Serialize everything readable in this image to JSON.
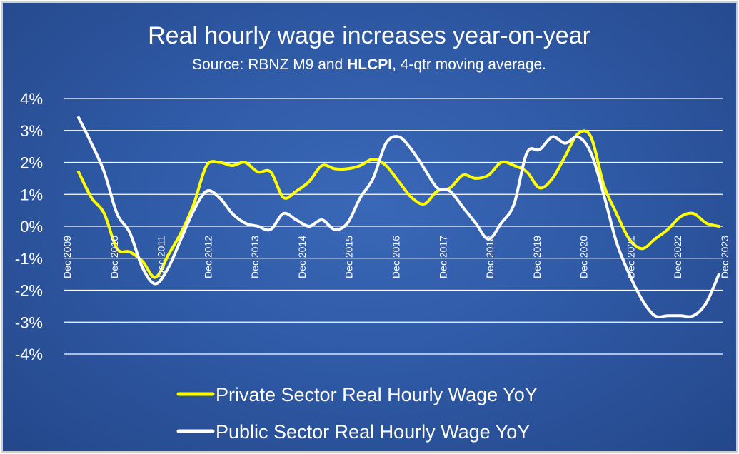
{
  "chart_data": {
    "type": "line",
    "title": "Real hourly wage increases year-on-year",
    "subtitle": {
      "part1": "Source: RBNZ M9 and ",
      "bold": "HLCPI",
      "part2": ", 4-qtr moving average."
    },
    "ylim": [
      -4,
      4
    ],
    "y_ticks": [
      4,
      3,
      2,
      1,
      0,
      -1,
      -2,
      -3,
      -4
    ],
    "y_tick_labels": [
      "4%",
      "3%",
      "2%",
      "1%",
      "0%",
      "-1%",
      "-2%",
      "-3%",
      "-4%"
    ],
    "x_tick_labels": [
      "Dec 2009",
      "Dec 2010",
      "Dec 2011",
      "Dec 2012",
      "Dec 2013",
      "Dec 2014",
      "Dec 2015",
      "Dec 2016",
      "Dec 2017",
      "Dec 2018",
      "Dec 2019",
      "Dec 2020",
      "Dec 2021",
      "Dec 2022",
      "Dec 2023"
    ],
    "grid": true,
    "legend_position": "bottom",
    "series": [
      {
        "name": "Private Sector Real Hourly Wage YoY",
        "color": "#ffff00",
        "values": [
          1.7,
          0.9,
          0.4,
          -0.7,
          -0.8,
          -1.1,
          -1.6,
          -0.9,
          -0.2,
          0.7,
          1.9,
          2.0,
          1.9,
          2.0,
          1.7,
          1.7,
          0.9,
          1.1,
          1.4,
          1.9,
          1.8,
          1.8,
          1.9,
          2.1,
          1.9,
          1.4,
          0.9,
          0.7,
          1.1,
          1.2,
          1.6,
          1.5,
          1.6,
          2.0,
          1.9,
          1.7,
          1.2,
          1.5,
          2.2,
          2.9,
          2.8,
          1.3,
          0.4,
          -0.4,
          -0.7,
          -0.4,
          -0.1,
          0.3,
          0.4,
          0.1,
          0.0
        ]
      },
      {
        "name": "Public Sector Real Hourly Wage YoY",
        "color": "#ffffff",
        "values": [
          3.4,
          2.6,
          1.7,
          0.4,
          -0.2,
          -1.3,
          -1.8,
          -1.3,
          -0.4,
          0.5,
          1.1,
          0.9,
          0.4,
          0.1,
          0.0,
          -0.1,
          0.4,
          0.2,
          0.0,
          0.2,
          -0.1,
          0.1,
          0.9,
          1.5,
          2.6,
          2.8,
          2.4,
          1.8,
          1.2,
          1.1,
          0.6,
          0.1,
          -0.4,
          0.1,
          0.7,
          2.3,
          2.4,
          2.8,
          2.6,
          2.8,
          2.3,
          1.0,
          -0.5,
          -1.5,
          -2.3,
          -2.8,
          -2.8,
          -2.8,
          -2.8,
          -2.4,
          -1.5
        ]
      }
    ]
  }
}
